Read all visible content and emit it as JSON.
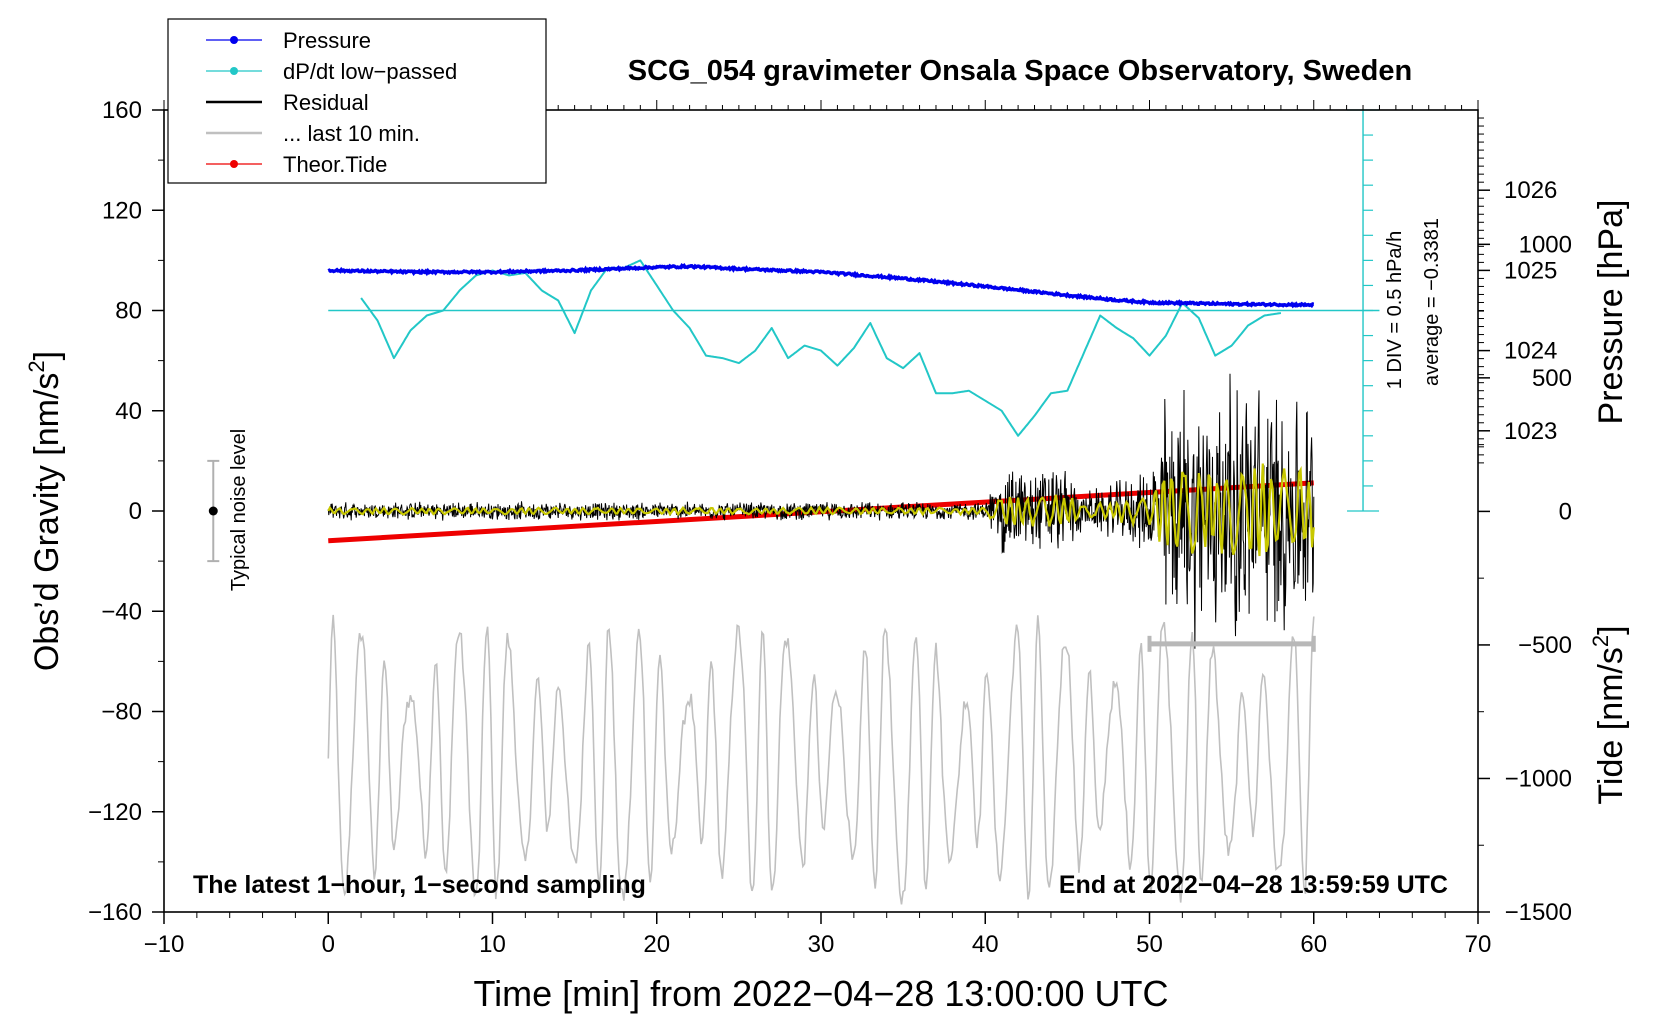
{
  "chart_data": {
    "type": "line",
    "title": "SCG_054 gravimeter Onsala Space Observatory, Sweden",
    "xlabel": "Time [min] from 2022−04−28 13:00:00 UTC",
    "ylabel_left": "Obs’d Gravity [nm/s²]",
    "ylabel_left_main": "Obs’d Gravity [nm/s",
    "ylabel_left_sup": "2",
    "ylabel_left_end": "]",
    "ylabel_right_pressure": "Pressure [hPa]",
    "ylabel_right_tide": "Tide [nm/s²]",
    "ylabel_right_tide_main": "Tide [nm/s",
    "ylabel_right_tide_sup": "2",
    "ylabel_right_tide_end": "]",
    "xlim": [
      -10,
      70
    ],
    "ylim": [
      -160,
      160
    ],
    "xticks": [
      -10,
      0,
      10,
      20,
      30,
      40,
      50,
      60,
      70
    ],
    "xtick_labels": [
      "−10",
      "0",
      "10",
      "20",
      "30",
      "40",
      "50",
      "60",
      "70"
    ],
    "yticks": [
      -160,
      -120,
      -80,
      -40,
      0,
      40,
      80,
      120,
      160
    ],
    "ytick_labels": [
      "−160",
      "−120",
      "−80",
      "−40",
      "0",
      "40",
      "80",
      "120",
      "160"
    ],
    "pressure_axis": {
      "ticks": [
        1023,
        1024,
        1025,
        1026
      ],
      "tick_labels": [
        "1023",
        "1024",
        "1025",
        "1026"
      ],
      "gravity_at_1023": 32,
      "nm_per_hPa": 32
    },
    "tide_axis": {
      "ticks": [
        -1500,
        -1000,
        -500,
        0,
        500,
        1000
      ],
      "tick_labels": [
        "−1500",
        "−1000",
        "−500",
        "0",
        "500",
        "1000"
      ],
      "range": [
        -1500,
        1500
      ]
    },
    "legend": {
      "position": "top-left",
      "entries": [
        {
          "label": "Pressure",
          "color": "#0000ee",
          "marker": true
        },
        {
          "label": "dP/dt low−passed",
          "color": "#22c7c7",
          "marker": true
        },
        {
          "label": "Residual",
          "color": "#000000",
          "marker": false
        },
        {
          "label": "... last 10 min.",
          "color": "#c0c0c0",
          "marker": false
        },
        {
          "label": "Theor.Tide",
          "color": "#ee0000",
          "marker": true
        }
      ]
    },
    "annotations": {
      "bottom_left": "The latest 1−hour, 1−second sampling",
      "bottom_right": "End at 2022−04−28 13:59:59 UTC",
      "noise_label": "Typical noise level",
      "dpdt_scale": "1 DIV = 0.5 hPa/h",
      "dpdt_average": "average = −0.3381"
    },
    "noise_bar": {
      "x": -7,
      "center": 0,
      "low": -20,
      "high": 20
    },
    "last10_bar": {
      "x_start": 50,
      "x_end": 60,
      "y": -53
    },
    "dpdt_baseline": 80,
    "dpdt_scale_bar": {
      "x": 63,
      "y_low": 0,
      "y_high": 160,
      "div": 10
    },
    "series": [
      {
        "name": "Pressure",
        "color": "#0000ee",
        "unit": "hPa",
        "x": [
          0,
          5,
          10,
          15,
          20,
          22,
          25,
          30,
          35,
          40,
          45,
          48,
          50,
          55,
          60
        ],
        "values": [
          1025.0,
          1024.98,
          1024.98,
          1025.0,
          1025.04,
          1025.05,
          1025.02,
          1024.98,
          1024.9,
          1024.8,
          1024.69,
          1024.63,
          1024.6,
          1024.58,
          1024.57
        ]
      },
      {
        "name": "dP/dt low−passed",
        "color": "#22c7c7",
        "unit": "nm/s2-equivalent",
        "x": [
          2,
          3,
          4,
          5,
          6,
          7,
          8,
          9,
          10,
          11,
          12,
          13,
          14,
          15,
          16,
          17,
          18,
          19,
          20,
          21,
          22,
          23,
          24,
          25,
          26,
          27,
          28,
          29,
          30,
          31,
          32,
          33,
          34,
          35,
          36,
          37,
          38,
          39,
          40,
          41,
          42,
          43,
          44,
          45,
          46,
          47,
          48,
          49,
          50,
          51,
          52,
          53,
          54,
          55,
          56,
          57,
          58
        ],
        "values": [
          85,
          76,
          61,
          72,
          78,
          80,
          88,
          94,
          96,
          94,
          95,
          88,
          84,
          71,
          88,
          97,
          97,
          100,
          90,
          80,
          73,
          62,
          61,
          59,
          64,
          73,
          61,
          66,
          64,
          58,
          65,
          75,
          61,
          57,
          63,
          47,
          47,
          48,
          44,
          40,
          30,
          38,
          47,
          48,
          63,
          78,
          73,
          69,
          62,
          70,
          83,
          77,
          62,
          66,
          74,
          78,
          79
        ]
      },
      {
        "name": "Theor.Tide",
        "color": "#ee0000",
        "unit": "nm/s2",
        "x": [
          0,
          60
        ],
        "values": [
          -110,
          107
        ]
      },
      {
        "name": "Residual",
        "color": "#000000",
        "unit": "nm/s2",
        "description": "1-second residual; amplitude envelope by time",
        "envelope_x": [
          0,
          40,
          41,
          45,
          46,
          50,
          51,
          56,
          58,
          60
        ],
        "envelope_amp": [
          4,
          4,
          20,
          20,
          8,
          18,
          55,
          60,
          55,
          50
        ]
      },
      {
        "name": "... last 10 min.",
        "color": "#c0c0c0",
        "unit": "nm/s2",
        "description": "last 10 minutes of residual stretched over 0–60 min",
        "x_range": [
          0,
          60
        ],
        "offset": -100,
        "amplitude": 55
      }
    ]
  }
}
